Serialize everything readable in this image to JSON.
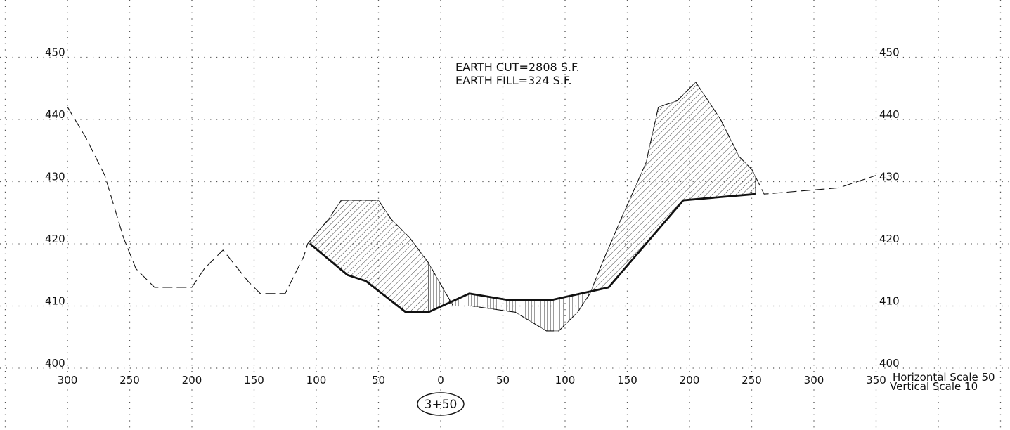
{
  "station": "3+50",
  "quantities": {
    "cut": "EARTH CUT=2808 S.F.",
    "fill": "EARTH FILL=324 S.F."
  },
  "scale_note": {
    "horizontal": "Horizontal Scale 50",
    "vertical": "Vertical Scale 10"
  },
  "axes": {
    "offset_ticks": [
      "300",
      "250",
      "200",
      "150",
      "100",
      "50",
      "0",
      "50",
      "100",
      "150",
      "200",
      "250",
      "300",
      "350"
    ],
    "elevation_ticks": [
      "450",
      "440",
      "430",
      "420",
      "410",
      "400"
    ]
  },
  "chart_data": {
    "type": "line",
    "x_range": [
      -300,
      350
    ],
    "y_range": [
      400,
      452
    ],
    "grid": true,
    "series": [
      {
        "role": "existing_ground",
        "style": "dashed",
        "x": [
          -300,
          -285,
          -270,
          -255,
          -245,
          -230,
          -200,
          -190,
          -175,
          -155,
          -145,
          -125,
          -110,
          -107,
          -90,
          -80,
          -60,
          -58,
          -50,
          -50,
          -40,
          -25,
          -10,
          10,
          25,
          60,
          85,
          95,
          110,
          120,
          130,
          145,
          165,
          175,
          190,
          205,
          225,
          240,
          250,
          260,
          320,
          350
        ],
        "y": [
          442,
          437,
          431,
          421,
          416,
          413,
          413,
          416,
          419,
          414,
          412,
          412,
          418,
          420,
          424,
          427,
          427,
          427,
          427,
          427,
          424,
          421,
          417,
          410,
          410,
          409,
          406,
          406,
          409,
          412,
          417,
          424,
          433,
          442,
          443,
          446,
          440,
          434,
          432,
          428,
          429,
          431
        ]
      },
      {
        "role": "proposed_grade",
        "style": "solid",
        "x": [
          -105,
          -75,
          -60,
          -28,
          -10,
          23,
          53,
          90,
          135,
          195,
          253
        ],
        "y": [
          420,
          415,
          414,
          409,
          409,
          412,
          411,
          411,
          413,
          427,
          428
        ]
      }
    ]
  }
}
